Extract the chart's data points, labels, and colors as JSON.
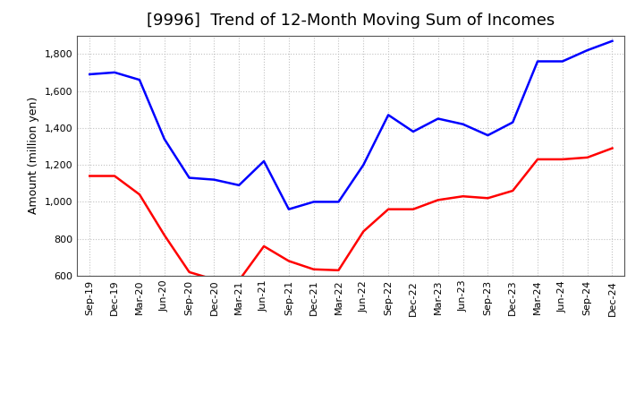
{
  "title": "[9996]  Trend of 12-Month Moving Sum of Incomes",
  "ylabel": "Amount (million yen)",
  "xlabels": [
    "Sep-19",
    "Dec-19",
    "Mar-20",
    "Jun-20",
    "Sep-20",
    "Dec-20",
    "Mar-21",
    "Jun-21",
    "Sep-21",
    "Dec-21",
    "Mar-22",
    "Jun-22",
    "Sep-22",
    "Dec-22",
    "Mar-23",
    "Jun-23",
    "Sep-23",
    "Dec-23",
    "Mar-24",
    "Jun-24",
    "Sep-24",
    "Dec-24"
  ],
  "ordinary_income": [
    1690,
    1700,
    1660,
    1340,
    1130,
    1120,
    1090,
    1220,
    960,
    1000,
    1000,
    1200,
    1470,
    1380,
    1450,
    1420,
    1360,
    1430,
    1760,
    1760,
    1820,
    1870
  ],
  "net_income": [
    1140,
    1140,
    1040,
    820,
    620,
    580,
    575,
    760,
    680,
    635,
    630,
    840,
    960,
    960,
    1010,
    1030,
    1020,
    1060,
    1230,
    1230,
    1240,
    1290
  ],
  "ordinary_color": "#0000FF",
  "net_color": "#FF0000",
  "ylim_min": 600,
  "ylim_max": 1900,
  "yticks": [
    600,
    800,
    1000,
    1200,
    1400,
    1600,
    1800
  ],
  "background_color": "#FFFFFF",
  "grid_color": "#BBBBBB",
  "title_fontsize": 13,
  "axis_label_fontsize": 9,
  "tick_fontsize": 8,
  "legend_fontsize": 9,
  "line_width": 1.8
}
